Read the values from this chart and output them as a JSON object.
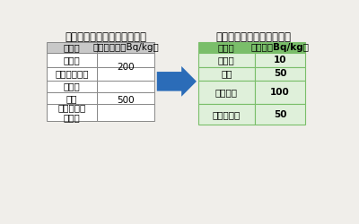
{
  "title_left": "放射性セシウムの暫定規制値",
  "title_right": "放射性セシウムの新基準値",
  "left_header": [
    "食品群",
    "暫定規制値（Bq/kg）"
  ],
  "left_row_labels": [
    "飲料水",
    "牛乳・乳製品",
    "野菜類",
    "穀類",
    "肉・卵・魚\nその他"
  ],
  "left_span1_value": "200",
  "left_span2_value": "500",
  "right_header": [
    "食品群",
    "基準値（Bq/kg）"
  ],
  "right_rows": [
    [
      "飲料水",
      "10"
    ],
    [
      "牛乳",
      "50"
    ],
    [
      "一般食品",
      "100"
    ],
    [
      "乳児用食品",
      "50"
    ]
  ],
  "bg_color": "#f0eeea",
  "left_header_bg": "#c8c8c8",
  "left_cell_bg": "#ffffff",
  "right_header_bg": "#7abe6a",
  "right_cell_bg": "#dff0da",
  "right_border_color": "#7abe6a",
  "left_border_color": "#888888",
  "arrow_color": "#2b6cb8",
  "title_fontsize": 8.5,
  "header_fontsize": 7.5,
  "cell_fontsize": 7.5
}
